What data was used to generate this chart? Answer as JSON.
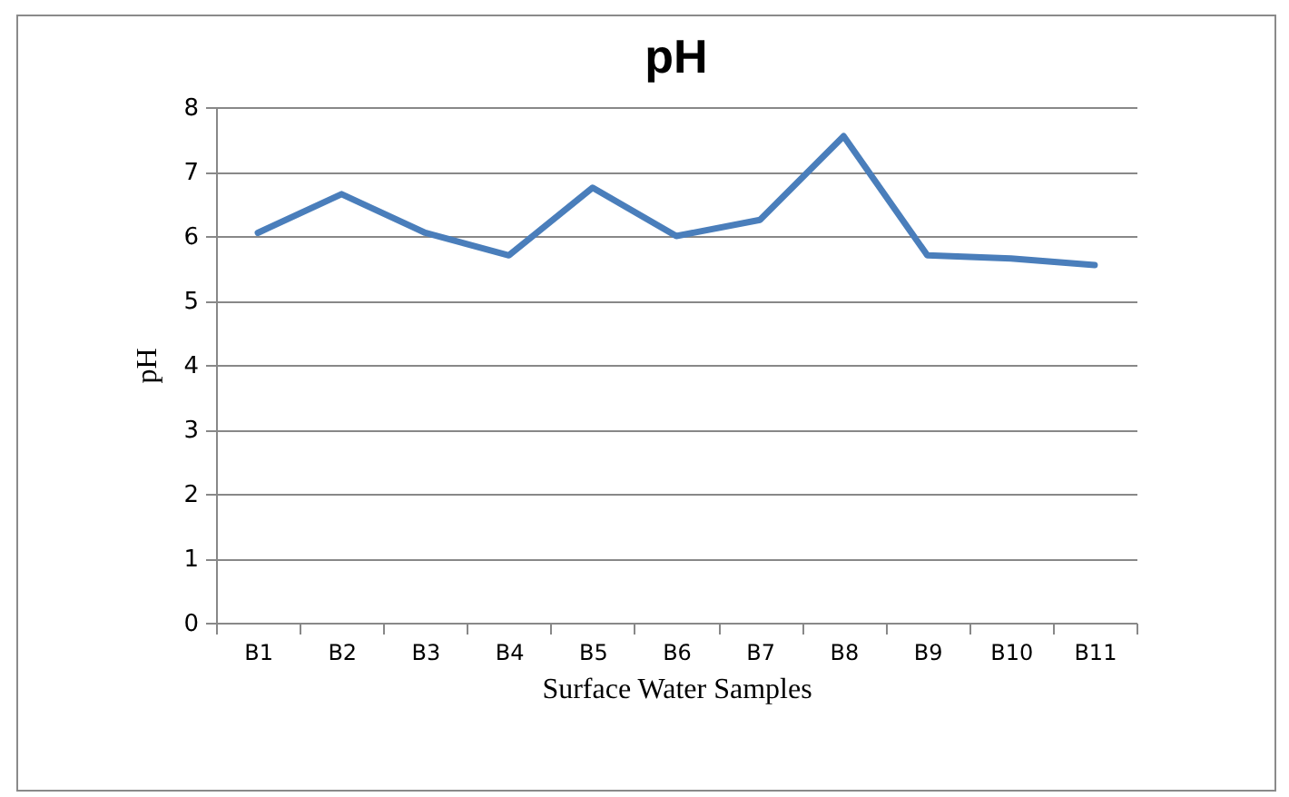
{
  "chart_data": {
    "type": "line",
    "title": "pH",
    "xlabel": "Surface Water Samples",
    "ylabel": "pH",
    "categories": [
      "B1",
      "B2",
      "B3",
      "B4",
      "B5",
      "B6",
      "B7",
      "B8",
      "B9",
      "B10",
      "B11"
    ],
    "series": [
      {
        "color": "#4a7ebb",
        "values": [
          6.05,
          6.65,
          6.05,
          5.7,
          6.75,
          6.0,
          6.25,
          7.55,
          5.7,
          5.65,
          5.55
        ]
      }
    ],
    "ylim": [
      0,
      8
    ],
    "yticks": [
      0,
      1,
      2,
      3,
      4,
      5,
      6,
      7,
      8
    ],
    "grid": "y",
    "marker": "none",
    "line_style": "solid"
  }
}
